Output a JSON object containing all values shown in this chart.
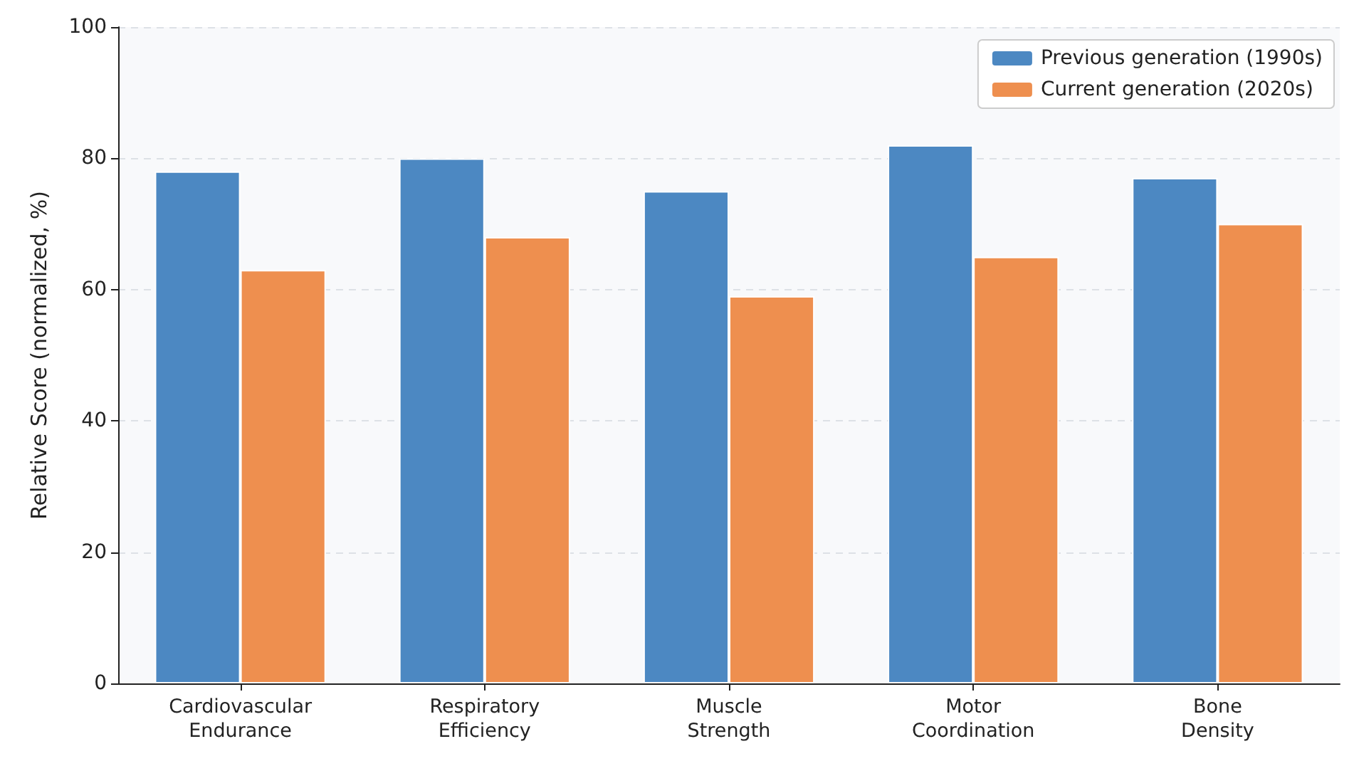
{
  "chart_data": {
    "type": "bar",
    "ylabel": "Relative Score (normalized, %)",
    "categories": [
      "Cardiovascular\nEndurance",
      "Respiratory\nEfficiency",
      "Muscle\nStrength",
      "Motor\nCoordination",
      "Bone\nDensity"
    ],
    "series": [
      {
        "name": "Previous generation (1990s)",
        "color": "#4c88c2",
        "values": [
          78,
          80,
          75,
          82,
          77
        ]
      },
      {
        "name": "Current generation (2020s)",
        "color": "#ee8f4f",
        "values": [
          63,
          68,
          59,
          65,
          70
        ]
      }
    ],
    "ylim": [
      0,
      100
    ],
    "yticks": [
      0,
      20,
      40,
      60,
      80,
      100
    ],
    "grid": "y",
    "legend": "top right"
  }
}
